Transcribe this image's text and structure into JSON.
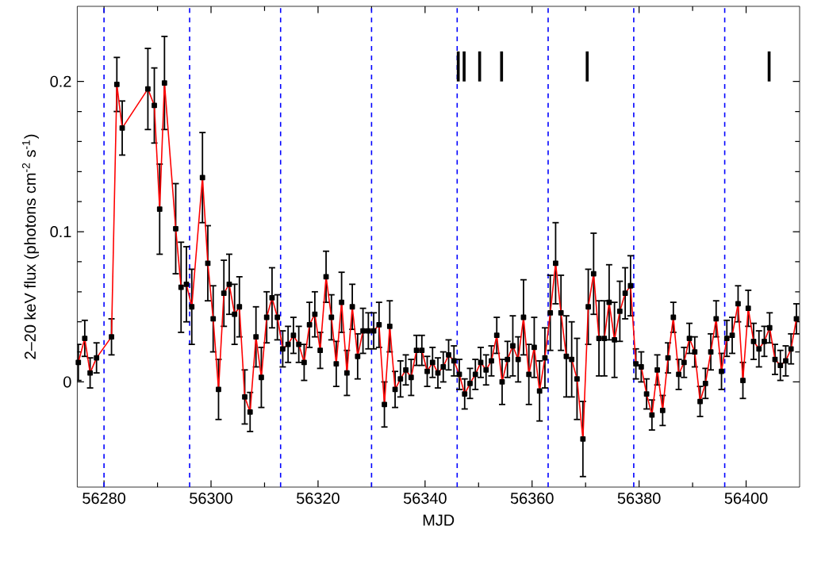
{
  "chart_data": {
    "type": "line",
    "xlabel": "MJD",
    "ylabel": "2–20 keV flux (photons cm$^{-2}$ s$^{-1}$)",
    "xlim": [
      56275,
      56410
    ],
    "ylim": [
      -0.07,
      0.25
    ],
    "xticks": [
      56280,
      56300,
      56320,
      56340,
      56360,
      56380,
      56400
    ],
    "yticks": [
      0,
      0.1,
      0.2
    ],
    "marker": "square",
    "line_style": "solid",
    "series": [
      {
        "color": "#ff0000",
        "x": [
          56275.2,
          56276.4,
          56277.4,
          56278.6,
          56281.4,
          56282.4,
          56283.4,
          56288.2,
          56289.4,
          56290.4,
          56291.3,
          56293.4,
          56294.4,
          56295.4,
          56296.4,
          56298.4,
          56299.4,
          56300.4,
          56301.4,
          56302.4,
          56303.4,
          56304.4,
          56305.3,
          56306.3,
          56307.3,
          56308.4,
          56309.4,
          56310.4,
          56311.4,
          56312.4,
          56313.4,
          56314.4,
          56315.4,
          56316.4,
          56317.4,
          56318.4,
          56319.4,
          56320.4,
          56321.5,
          56322.5,
          56323.4,
          56324.4,
          56325.4,
          56326.4,
          56327.4,
          56328.4,
          56329.4,
          56330.4,
          56331.4,
          56332.4,
          56333.4,
          56334.4,
          56335.4,
          56336.4,
          56337.4,
          56338.4,
          56339.4,
          56340.4,
          56341.4,
          56342.4,
          56343.4,
          56344.4,
          56345.4,
          56346.4,
          56347.4,
          56348.4,
          56349.4,
          56350.4,
          56351.4,
          56352.4,
          56353.4,
          56354.4,
          56355.4,
          56356.4,
          56357.4,
          56358.4,
          56359.4,
          56360.4,
          56361.4,
          56362.4,
          56363.4,
          56364.4,
          56365.4,
          56366.4,
          56367.4,
          56368.4,
          56369.5,
          56370.5,
          56371.5,
          56372.5,
          56373.5,
          56374.4,
          56375.4,
          56376.4,
          56377.4,
          56378.4,
          56379.4,
          56380.4,
          56381.4,
          56382.4,
          56383.4,
          56384.4,
          56385.4,
          56386.4,
          56387.4,
          56388.4,
          56389.4,
          56390.4,
          56391.4,
          56392.4,
          56393.4,
          56394.4,
          56395.4,
          56396.4,
          56397.4,
          56398.5,
          56399.4,
          56400.4,
          56401.4,
          56402.4,
          56403.4,
          56404.4,
          56405.4,
          56406.4,
          56407.4,
          56408.4,
          56409.4
        ],
        "values": [
          0.013,
          0.029,
          0.006,
          0.016,
          0.03,
          0.198,
          0.169,
          0.195,
          0.184,
          0.115,
          0.199,
          0.102,
          0.063,
          0.065,
          0.05,
          0.136,
          0.079,
          0.042,
          -0.005,
          0.059,
          0.065,
          0.045,
          0.05,
          -0.01,
          -0.02,
          0.03,
          0.003,
          0.043,
          0.056,
          0.043,
          0.022,
          0.025,
          0.031,
          0.025,
          0.013,
          0.038,
          0.045,
          0.021,
          0.07,
          0.043,
          0.012,
          0.053,
          0.006,
          0.05,
          0.017,
          0.034,
          0.034,
          0.034,
          0.038,
          -0.015,
          0.037,
          -0.005,
          0.002,
          0.008,
          0.003,
          0.021,
          0.021,
          0.007,
          0.013,
          0.006,
          0.01,
          0.018,
          0.014,
          0.005,
          -0.008,
          -0.001,
          0.005,
          0.013,
          0.008,
          0.014,
          0.031,
          0.0,
          0.015,
          0.024,
          0.015,
          0.043,
          0.005,
          0.023,
          -0.006,
          0.016,
          0.046,
          0.079,
          0.046,
          0.017,
          0.015,
          0.002,
          -0.038,
          0.05,
          0.072,
          0.029,
          0.029,
          0.053,
          0.028,
          0.047,
          0.059,
          0.064,
          0.012,
          0.01,
          -0.008,
          -0.022,
          0.008,
          -0.019,
          0.016,
          0.043,
          0.005,
          0.013,
          0.029,
          0.02,
          -0.013,
          -0.001,
          0.02,
          0.042,
          0.007,
          0.029,
          0.031,
          0.052,
          0.001,
          0.049,
          0.027,
          0.022,
          0.027,
          0.036,
          0.015,
          0.011,
          0.014,
          0.022,
          0.042
        ],
        "errors": [
          0.012,
          0.012,
          0.01,
          0.01,
          0.012,
          0.018,
          0.018,
          0.027,
          0.025,
          0.03,
          0.031,
          0.03,
          0.03,
          0.025,
          0.025,
          0.03,
          0.025,
          0.022,
          0.02,
          0.022,
          0.02,
          0.02,
          0.02,
          0.018,
          0.013,
          0.02,
          0.02,
          0.017,
          0.02,
          0.015,
          0.012,
          0.012,
          0.012,
          0.012,
          0.012,
          0.015,
          0.015,
          0.012,
          0.017,
          0.015,
          0.015,
          0.02,
          0.015,
          0.015,
          0.015,
          0.015,
          0.012,
          0.012,
          0.015,
          0.015,
          0.017,
          0.012,
          0.012,
          0.01,
          0.012,
          0.01,
          0.01,
          0.01,
          0.01,
          0.01,
          0.01,
          0.01,
          0.01,
          0.01,
          0.01,
          0.01,
          0.01,
          0.01,
          0.01,
          0.01,
          0.012,
          0.015,
          0.012,
          0.02,
          0.015,
          0.025,
          0.02,
          0.02,
          0.02,
          0.02,
          0.025,
          0.027,
          0.025,
          0.027,
          0.025,
          0.027,
          0.025,
          0.025,
          0.027,
          0.025,
          0.025,
          0.025,
          0.025,
          0.02,
          0.017,
          0.02,
          0.01,
          0.01,
          0.01,
          0.01,
          0.01,
          0.01,
          0.01,
          0.01,
          0.01,
          0.01,
          0.01,
          0.01,
          0.01,
          0.01,
          0.012,
          0.012,
          0.012,
          0.012,
          0.012,
          0.012,
          0.012,
          0.012,
          0.012,
          0.012,
          0.01,
          0.01,
          0.01,
          0.01,
          0.01,
          0.01,
          0.01
        ]
      },
      {
        "type": "bar",
        "color": "#000000",
        "x": [
          56346.2,
          56347.3,
          56350.2,
          56354.3,
          56370.3,
          56404.3
        ],
        "base": [
          0.2,
          0.2,
          0.2,
          0.2,
          0.2,
          0.2
        ],
        "values": [
          0.02,
          0.02,
          0.02,
          0.02,
          0.02,
          0.02
        ]
      }
    ],
    "ref_lines": [
      {
        "axis": "x",
        "value": 56280,
        "color": "#0000ff",
        "line_style": "dashed"
      },
      {
        "axis": "x",
        "value": 56296,
        "color": "#0000ff",
        "line_style": "dashed"
      },
      {
        "axis": "x",
        "value": 56313,
        "color": "#0000ff",
        "line_style": "dashed"
      },
      {
        "axis": "x",
        "value": 56330,
        "color": "#0000ff",
        "line_style": "dashed"
      },
      {
        "axis": "x",
        "value": 56346,
        "color": "#0000ff",
        "line_style": "dashed"
      },
      {
        "axis": "x",
        "value": 56363,
        "color": "#0000ff",
        "line_style": "dashed"
      },
      {
        "axis": "x",
        "value": 56379,
        "color": "#0000ff",
        "line_style": "dashed"
      },
      {
        "axis": "x",
        "value": 56396,
        "color": "#0000ff",
        "line_style": "dashed"
      }
    ]
  }
}
